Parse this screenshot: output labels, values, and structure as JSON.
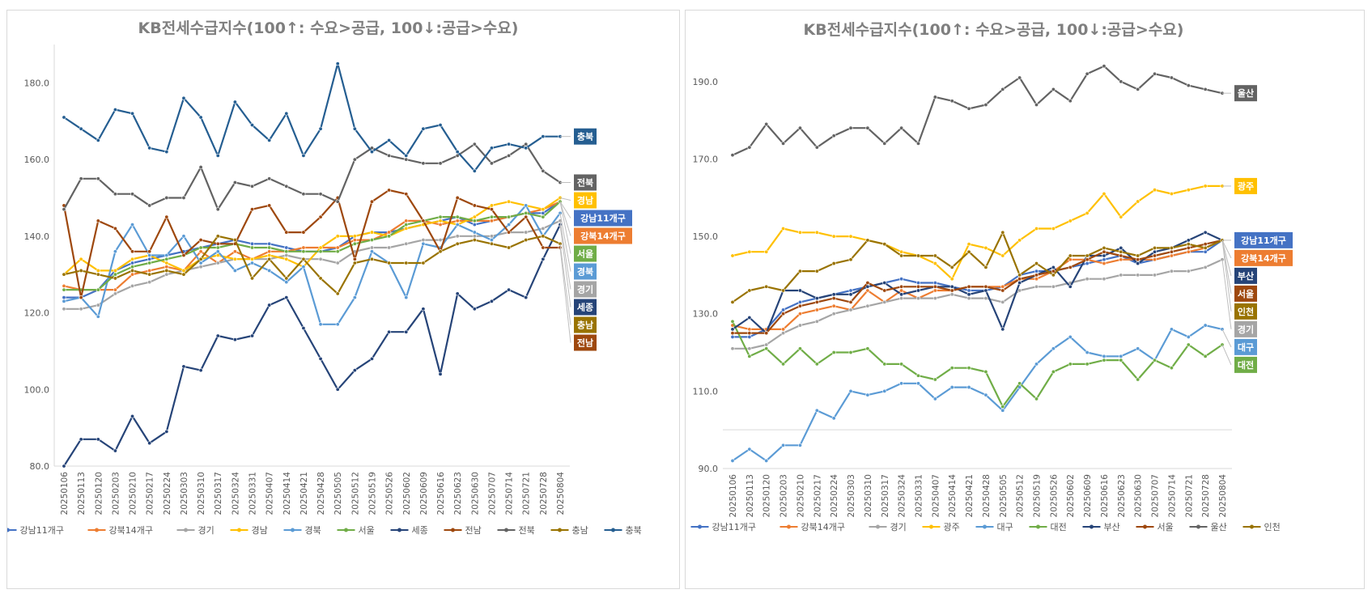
{
  "chart_data": [
    {
      "type": "line",
      "title": "KB전세수급지수(100↑: 수요>공급, 100↓:공급>수요)",
      "xlabel": "",
      "ylabel": "",
      "ylim": [
        80,
        190
      ],
      "yticks": [
        "80.0",
        "100.0",
        "120.0",
        "140.0",
        "160.0",
        "180.0"
      ],
      "grid": false,
      "legend_position": "bottom",
      "categories": [
        "20250106",
        "20250113",
        "20250120",
        "20250203",
        "20250210",
        "20250217",
        "20250224",
        "20250303",
        "20250310",
        "20250317",
        "20250324",
        "20250331",
        "20250407",
        "20250414",
        "20250421",
        "20250428",
        "20250505",
        "20250512",
        "20250519",
        "20250526",
        "20250602",
        "20250609",
        "20250616",
        "20250623",
        "20250630",
        "20250707",
        "20250714",
        "20250721",
        "20250728",
        "20250804"
      ],
      "series": [
        {
          "name": "강남11개구",
          "color": "#4472c4",
          "label_color": "#4472c4",
          "values": [
            124,
            124,
            126,
            131,
            133,
            134,
            135,
            136,
            137,
            138,
            139,
            138,
            138,
            137,
            136,
            136,
            137,
            140,
            141,
            141,
            142,
            143,
            144,
            145,
            143,
            144,
            145,
            146,
            146,
            149
          ]
        },
        {
          "name": "강북14개구",
          "color": "#ed7d31",
          "label_color": "#ed7d31",
          "values": [
            127,
            126,
            126,
            126,
            130,
            131,
            132,
            131,
            136,
            133,
            136,
            134,
            136,
            136,
            137,
            137,
            137,
            139,
            139,
            141,
            144,
            144,
            143,
            144,
            144,
            144,
            145,
            146,
            147,
            149
          ]
        },
        {
          "name": "경기",
          "color": "#a5a5a5",
          "label_color": "#a5a5a5",
          "values": [
            121,
            121,
            122,
            125,
            127,
            128,
            130,
            131,
            132,
            133,
            134,
            134,
            134,
            135,
            134,
            134,
            133,
            136,
            137,
            137,
            138,
            139,
            139,
            140,
            140,
            140,
            141,
            141,
            142,
            144
          ]
        },
        {
          "name": "경남",
          "color": "#ffc000",
          "label_color": "#ffc000",
          "values": [
            130,
            134,
            131,
            131,
            134,
            135,
            133,
            131,
            134,
            135,
            134,
            134,
            135,
            134,
            132,
            137,
            140,
            140,
            141,
            140,
            142,
            143,
            144,
            143,
            145,
            148,
            149,
            148,
            147,
            150
          ]
        },
        {
          "name": "경북",
          "color": "#5b9bd5",
          "label_color": "#5b9bd5",
          "values": [
            123,
            124,
            119,
            136,
            143,
            135,
            135,
            140,
            133,
            136,
            131,
            133,
            131,
            128,
            132,
            117,
            117,
            124,
            136,
            133,
            124,
            138,
            137,
            143,
            141,
            139,
            143,
            148,
            140,
            146
          ]
        },
        {
          "name": "서울",
          "color": "#70ad47",
          "label_color": "#70ad47",
          "values": [
            126,
            126,
            126,
            130,
            132,
            133,
            134,
            135,
            137,
            137,
            138,
            137,
            137,
            136,
            136,
            136,
            136,
            138,
            139,
            140,
            143,
            144,
            145,
            145,
            144,
            145,
            145,
            146,
            145,
            149
          ]
        },
        {
          "name": "세종",
          "color": "#264478",
          "label_color": "#264478",
          "values": [
            80,
            87,
            87,
            84,
            93,
            86,
            89,
            106,
            105,
            114,
            113,
            114,
            122,
            124,
            116,
            108,
            100,
            105,
            108,
            115,
            115,
            121,
            104,
            125,
            121,
            123,
            126,
            124,
            134,
            143
          ]
        },
        {
          "name": "전남",
          "color": "#9e480e",
          "label_color": "#9e480e",
          "values": [
            148,
            124,
            144,
            142,
            136,
            136,
            145,
            135,
            139,
            138,
            138,
            147,
            148,
            141,
            141,
            145,
            150,
            134,
            149,
            152,
            151,
            144,
            136,
            150,
            148,
            147,
            141,
            145,
            137,
            137
          ]
        },
        {
          "name": "전북",
          "color": "#636363",
          "label_color": "#636363",
          "values": [
            147,
            155,
            155,
            151,
            151,
            148,
            150,
            150,
            158,
            147,
            154,
            153,
            155,
            153,
            151,
            151,
            149,
            160,
            163,
            161,
            160,
            159,
            159,
            161,
            164,
            159,
            161,
            164,
            157,
            154
          ]
        },
        {
          "name": "충남",
          "color": "#997300",
          "label_color": "#997300",
          "values": [
            130,
            131,
            130,
            129,
            131,
            130,
            131,
            130,
            134,
            140,
            139,
            129,
            134,
            129,
            134,
            129,
            125,
            133,
            134,
            133,
            133,
            133,
            136,
            138,
            139,
            138,
            137,
            139,
            140,
            138
          ]
        },
        {
          "name": "충북",
          "color": "#255e91",
          "label_color": "#255e91",
          "values": [
            171,
            168,
            165,
            173,
            172,
            163,
            162,
            176,
            171,
            161,
            175,
            169,
            165,
            172,
            161,
            168,
            185,
            168,
            162,
            165,
            161,
            168,
            169,
            162,
            157,
            163,
            164,
            163,
            166,
            166
          ]
        }
      ]
    },
    {
      "type": "line",
      "title": "KB전세수급지수(100↑: 수요>공급, 100↓:공급>수요)",
      "xlabel": "",
      "ylabel": "",
      "ylim": [
        90,
        200
      ],
      "yticks": [
        "90.0",
        "110.0",
        "130.0",
        "150.0",
        "170.0",
        "190.0"
      ],
      "grid": false,
      "legend_position": "bottom",
      "categories": [
        "20250106",
        "20250113",
        "20250120",
        "20250203",
        "20250210",
        "20250217",
        "20250224",
        "20250303",
        "20250310",
        "20250317",
        "20250324",
        "20250331",
        "20250407",
        "20250414",
        "20250421",
        "20250428",
        "20250505",
        "20250512",
        "20250519",
        "20250526",
        "20250602",
        "20250609",
        "20250616",
        "20250623",
        "20250630",
        "20250707",
        "20250714",
        "20250721",
        "20250728",
        "20250804"
      ],
      "series": [
        {
          "name": "강남11개구",
          "color": "#4472c4",
          "label_color": "#4472c4",
          "values": [
            124,
            124,
            126,
            131,
            133,
            134,
            135,
            136,
            137,
            138,
            139,
            138,
            138,
            137,
            136,
            136,
            137,
            140,
            141,
            141,
            142,
            143,
            144,
            145,
            143,
            144,
            145,
            146,
            146,
            149
          ]
        },
        {
          "name": "강북14개구",
          "color": "#ed7d31",
          "label_color": "#ed7d31",
          "values": [
            127,
            126,
            126,
            126,
            130,
            131,
            132,
            131,
            136,
            133,
            136,
            134,
            136,
            136,
            137,
            137,
            137,
            139,
            139,
            141,
            144,
            144,
            143,
            144,
            144,
            144,
            145,
            146,
            147,
            149
          ]
        },
        {
          "name": "경기",
          "color": "#a5a5a5",
          "label_color": "#a5a5a5",
          "values": [
            121,
            121,
            122,
            125,
            127,
            128,
            130,
            131,
            132,
            133,
            134,
            134,
            134,
            135,
            134,
            134,
            133,
            136,
            137,
            137,
            138,
            139,
            139,
            140,
            140,
            140,
            141,
            141,
            142,
            144
          ]
        },
        {
          "name": "광주",
          "color": "#ffc000",
          "label_color": "#ffc000",
          "values": [
            145,
            146,
            146,
            152,
            151,
            151,
            150,
            150,
            149,
            148,
            146,
            145,
            143,
            139,
            148,
            147,
            145,
            149,
            152,
            152,
            154,
            156,
            161,
            155,
            159,
            162,
            161,
            162,
            163,
            163
          ]
        },
        {
          "name": "대구",
          "color": "#5b9bd5",
          "label_color": "#5b9bd5",
          "values": [
            92,
            95,
            92,
            96,
            96,
            105,
            103,
            110,
            109,
            110,
            112,
            112,
            108,
            111,
            111,
            109,
            105,
            111,
            117,
            121,
            124,
            120,
            119,
            119,
            121,
            118,
            126,
            124,
            127,
            126
          ]
        },
        {
          "name": "대전",
          "color": "#70ad47",
          "label_color": "#70ad47",
          "values": [
            128,
            119,
            121,
            117,
            121,
            117,
            120,
            120,
            121,
            117,
            117,
            114,
            113,
            116,
            116,
            115,
            106,
            112,
            108,
            115,
            117,
            117,
            118,
            118,
            113,
            118,
            116,
            122,
            119,
            122
          ]
        },
        {
          "name": "부산",
          "color": "#264478",
          "label_color": "#264478",
          "values": [
            126,
            129,
            125,
            136,
            136,
            134,
            135,
            135,
            137,
            138,
            135,
            136,
            137,
            137,
            135,
            136,
            126,
            138,
            140,
            142,
            137,
            145,
            145,
            147,
            143,
            146,
            147,
            149,
            151,
            149
          ]
        },
        {
          "name": "서울",
          "color": "#9e480e",
          "label_color": "#9e480e",
          "values": [
            125,
            125,
            125,
            130,
            132,
            133,
            134,
            133,
            138,
            136,
            137,
            137,
            137,
            136,
            137,
            137,
            136,
            139,
            140,
            141,
            142,
            144,
            146,
            145,
            144,
            145,
            146,
            147,
            148,
            149
          ]
        },
        {
          "name": "울산",
          "color": "#636363",
          "label_color": "#636363",
          "values": [
            171,
            173,
            179,
            174,
            178,
            173,
            176,
            178,
            178,
            174,
            178,
            174,
            186,
            185,
            183,
            184,
            188,
            191,
            184,
            188,
            185,
            192,
            194,
            190,
            188,
            192,
            191,
            189,
            188,
            187
          ]
        },
        {
          "name": "인천",
          "color": "#997300",
          "label_color": "#997300",
          "values": [
            133,
            136,
            137,
            136,
            141,
            141,
            143,
            144,
            149,
            148,
            145,
            145,
            145,
            142,
            146,
            142,
            151,
            140,
            143,
            140,
            145,
            145,
            147,
            146,
            145,
            147,
            147,
            148,
            147,
            149
          ]
        }
      ]
    }
  ]
}
